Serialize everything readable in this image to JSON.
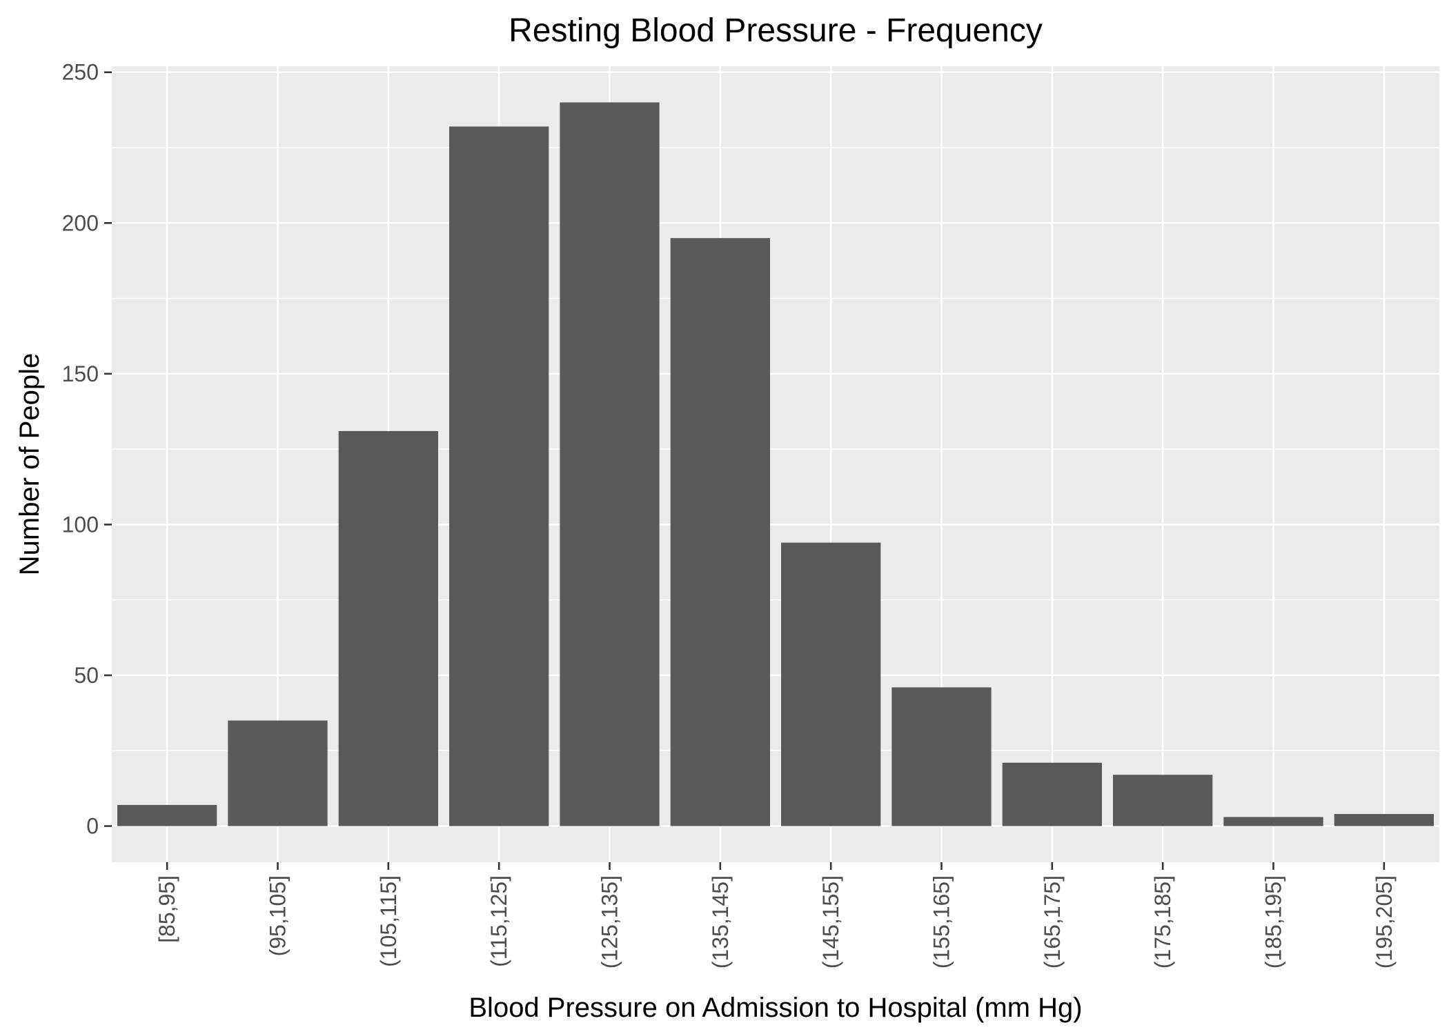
{
  "chart_data": {
    "type": "bar",
    "title": "Resting Blood Pressure - Frequency",
    "xlabel": "Blood Pressure on Admission to Hospital (mm Hg)",
    "ylabel": "Number of People",
    "categories": [
      "[85,95]",
      "(95,105]",
      "(105,115]",
      "(115,125]",
      "(125,135]",
      "(135,145]",
      "(145,155]",
      "(155,165]",
      "(165,175]",
      "(175,185]",
      "(185,195]",
      "(195,205]"
    ],
    "values": [
      7,
      35,
      131,
      232,
      240,
      195,
      94,
      46,
      21,
      17,
      3,
      4
    ],
    "ylim": [
      -12,
      252
    ],
    "yticks": [
      0,
      50,
      100,
      150,
      200,
      250
    ],
    "grid": true,
    "legend": "none",
    "colors": {
      "bar": "#595959",
      "panel": "#ebebeb",
      "grid": "#ffffff",
      "axis_text": "#4d4d4d",
      "title_text": "#000000"
    }
  }
}
